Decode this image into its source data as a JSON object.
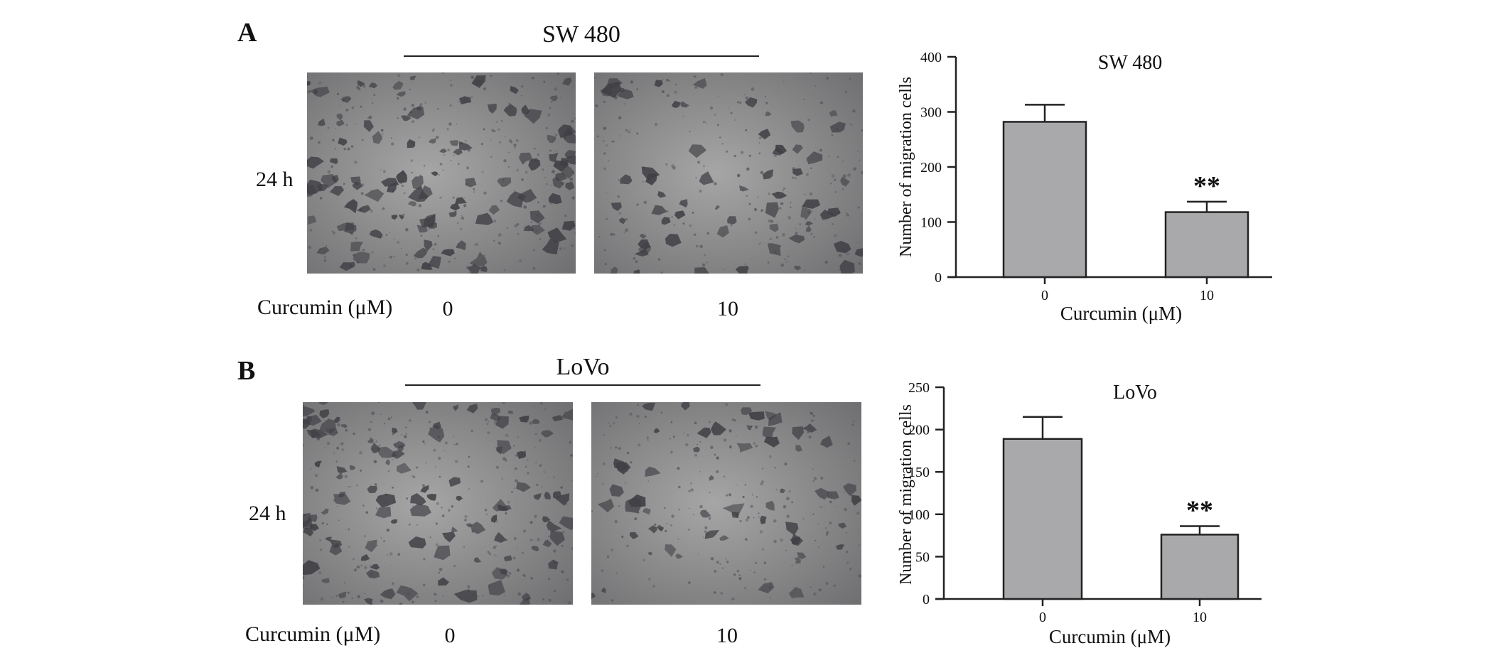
{
  "panels": [
    {
      "letter": "A",
      "cell_line": "SW 480",
      "time_label": "24 h",
      "treatment_label": "Curcumin",
      "treatment_unit": "(μM)",
      "doses": [
        "0",
        "10"
      ]
    },
    {
      "letter": "B",
      "cell_line": "LoVo",
      "time_label": "24 h",
      "treatment_label": "Curcumin",
      "treatment_unit": "(μM)",
      "doses": [
        "0",
        "10"
      ]
    }
  ],
  "colors": {
    "bar_fill": "#a9a9ac",
    "bar_stroke": "#222222",
    "micro_bg": "#8e8e8e",
    "cell_dark": "#3f3f45"
  },
  "chart_data": [
    {
      "type": "bar",
      "title": "SW 480",
      "categories": [
        "0",
        "10"
      ],
      "values": [
        282,
        118
      ],
      "error_upper": [
        313,
        137
      ],
      "annotations": [
        "",
        "**"
      ],
      "xlabel": "Curcumin (μM)",
      "ylabel": "Number of migration cells",
      "ylim": [
        0,
        400
      ],
      "yticks": [
        0,
        100,
        200,
        300,
        400
      ],
      "grid": false
    },
    {
      "type": "bar",
      "title": "LoVo",
      "categories": [
        "0",
        "10"
      ],
      "values": [
        189,
        76
      ],
      "error_upper": [
        215,
        86
      ],
      "annotations": [
        "",
        "**"
      ],
      "xlabel": "Curcumin (μM)",
      "ylabel": "Number of migration cells",
      "ylim": [
        0,
        250
      ],
      "yticks": [
        0,
        50,
        100,
        150,
        200,
        250
      ],
      "grid": false
    }
  ]
}
